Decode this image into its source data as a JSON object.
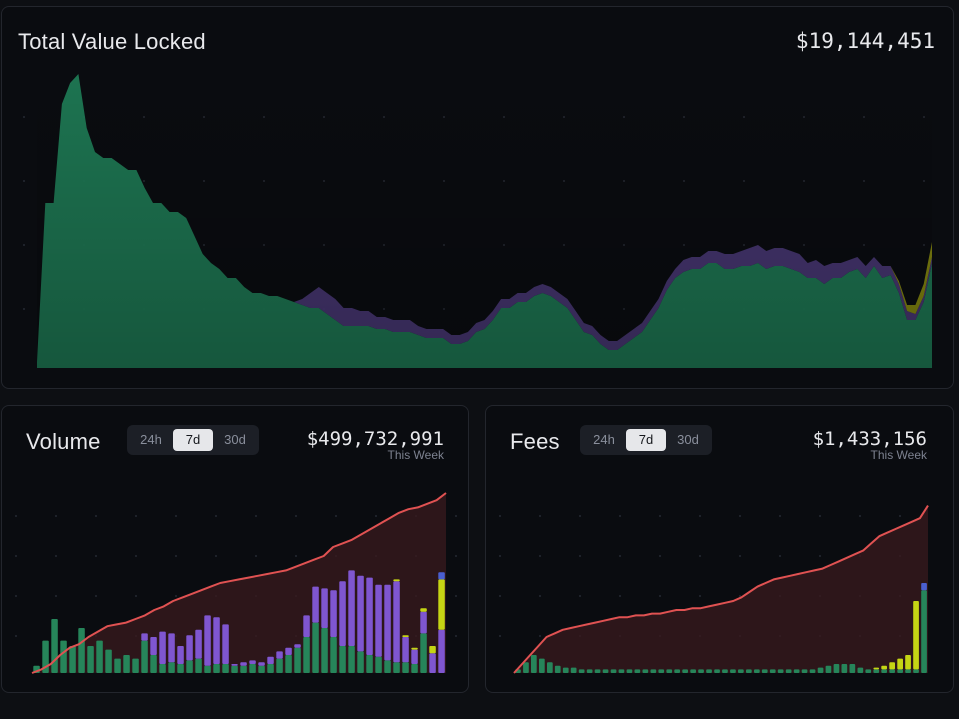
{
  "tvl": {
    "title": "Total Value Locked",
    "value": "$19,144,451",
    "colors": {
      "green": "#1f7a55",
      "purple": "#4b3a7a",
      "yellow": "#8c8f10"
    }
  },
  "volume": {
    "title": "Volume",
    "value": "$499,732,991",
    "period_label": "This Week",
    "tabs": [
      {
        "label": "24h",
        "active": false
      },
      {
        "label": "7d",
        "active": true
      },
      {
        "label": "30d",
        "active": false
      }
    ]
  },
  "fees": {
    "title": "Fees",
    "value": "$1,433,156",
    "period_label": "This Week",
    "tabs": [
      {
        "label": "24h",
        "active": false
      },
      {
        "label": "7d",
        "active": true
      },
      {
        "label": "30d",
        "active": false
      }
    ]
  },
  "chart_data": [
    {
      "type": "area",
      "stacked": true,
      "grid": "dots",
      "series_colors": [
        "#1f7a55",
        "#4b3a7a",
        "#8c8f10"
      ],
      "series": [
        {
          "values": [
            0.02,
            0.55,
            0.55,
            0.88,
            0.95,
            0.98,
            0.8,
            0.72,
            0.7,
            0.7,
            0.68,
            0.66,
            0.66,
            0.6,
            0.55,
            0.55,
            0.52,
            0.52,
            0.5,
            0.44,
            0.38,
            0.35,
            0.33,
            0.3,
            0.3,
            0.27,
            0.25,
            0.25,
            0.24,
            0.24,
            0.23,
            0.22,
            0.21,
            0.2,
            0.2,
            0.18,
            0.16,
            0.14,
            0.14,
            0.14,
            0.14,
            0.13,
            0.13,
            0.12,
            0.12,
            0.12,
            0.11,
            0.1,
            0.1,
            0.1,
            0.08,
            0.08,
            0.09,
            0.12,
            0.13,
            0.16,
            0.2,
            0.2,
            0.22,
            0.22,
            0.24,
            0.25,
            0.24,
            0.22,
            0.2,
            0.16,
            0.12,
            0.11,
            0.08,
            0.06,
            0.06,
            0.08,
            0.1,
            0.12,
            0.16,
            0.2,
            0.26,
            0.3,
            0.32,
            0.33,
            0.33,
            0.35,
            0.35,
            0.33,
            0.33,
            0.34,
            0.34,
            0.35,
            0.33,
            0.34,
            0.34,
            0.33,
            0.32,
            0.3,
            0.3,
            0.28,
            0.3,
            0.3,
            0.32,
            0.33,
            0.3,
            0.34,
            0.3,
            0.31,
            0.25,
            0.16,
            0.16,
            0.22,
            0.35
          ]
        },
        {
          "values": [
            0,
            0,
            0,
            0,
            0,
            0,
            0,
            0,
            0,
            0,
            0,
            0,
            0,
            0,
            0,
            0,
            0,
            0,
            0,
            0,
            0,
            0,
            0,
            0,
            0,
            0,
            0,
            0,
            0,
            0,
            0,
            0,
            0.02,
            0.05,
            0.07,
            0.07,
            0.07,
            0.06,
            0.06,
            0.05,
            0.05,
            0.04,
            0.04,
            0.04,
            0.04,
            0.04,
            0.03,
            0.03,
            0.03,
            0.03,
            0.03,
            0.03,
            0.03,
            0.03,
            0.03,
            0.03,
            0.03,
            0.03,
            0.03,
            0.03,
            0.03,
            0.03,
            0.03,
            0.03,
            0.03,
            0.03,
            0.03,
            0.03,
            0.03,
            0.03,
            0.03,
            0.03,
            0.03,
            0.03,
            0.03,
            0.03,
            0.03,
            0.03,
            0.04,
            0.04,
            0.04,
            0.04,
            0.04,
            0.05,
            0.05,
            0.05,
            0.06,
            0.06,
            0.06,
            0.06,
            0.06,
            0.06,
            0.06,
            0.05,
            0.06,
            0.06,
            0.05,
            0.05,
            0.04,
            0.04,
            0.04,
            0.03,
            0.04,
            0.03,
            0.03,
            0.03,
            0.02,
            0.02,
            0.02,
            0.08
          ]
        },
        {
          "values": [
            0,
            0,
            0,
            0,
            0,
            0,
            0,
            0,
            0,
            0,
            0,
            0,
            0,
            0,
            0,
            0,
            0,
            0,
            0,
            0,
            0,
            0,
            0,
            0,
            0,
            0,
            0,
            0,
            0,
            0,
            0,
            0,
            0,
            0,
            0,
            0,
            0,
            0,
            0,
            0,
            0,
            0,
            0,
            0,
            0,
            0,
            0,
            0,
            0,
            0,
            0,
            0,
            0,
            0,
            0,
            0,
            0,
            0,
            0,
            0,
            0,
            0,
            0,
            0,
            0,
            0,
            0,
            0,
            0,
            0,
            0,
            0,
            0,
            0,
            0,
            0,
            0,
            0,
            0,
            0,
            0,
            0,
            0,
            0,
            0,
            0,
            0,
            0,
            0,
            0,
            0,
            0,
            0,
            0,
            0,
            0,
            0,
            0,
            0,
            0,
            0,
            0,
            0,
            0,
            0.01,
            0.02,
            0.03,
            0.04,
            0.05,
            0.04,
            0.1,
            0.12,
            0.4
          ]
        }
      ]
    },
    {
      "type": "bar",
      "stacked": true,
      "grid": "dots",
      "series_colors": [
        "#26855a",
        "#7f56d0",
        "#c5d514",
        "#4a5fd0"
      ],
      "cumulative_line_color": "#e05252",
      "series": [
        {
          "values": [
            0.04,
            0.18,
            0.3,
            0.18,
            0.15,
            0.25,
            0.15,
            0.18,
            0.13,
            0.08,
            0.1,
            0.08,
            0.18,
            0.1,
            0.05,
            0.06,
            0.05,
            0.07,
            0.08,
            0.04,
            0.05,
            0.05,
            0.04,
            0.04,
            0.05,
            0.04,
            0.05,
            0.08,
            0.1,
            0.14,
            0.2,
            0.28,
            0.25,
            0.2,
            0.15,
            0.15,
            0.12,
            0.1,
            0.09,
            0.07,
            0.06,
            0.06,
            0.05,
            0.22
          ]
        },
        {
          "values": [
            0,
            0,
            0,
            0,
            0,
            0,
            0,
            0,
            0,
            0,
            0,
            0,
            0.04,
            0.1,
            0.18,
            0.16,
            0.1,
            0.14,
            0.16,
            0.28,
            0.26,
            0.22,
            0.01,
            0.02,
            0.02,
            0.02,
            0.04,
            0.04,
            0.04,
            0.02,
            0.12,
            0.2,
            0.22,
            0.26,
            0.36,
            0.42,
            0.42,
            0.43,
            0.4,
            0.42,
            0.45,
            0.14,
            0.08,
            0.12,
            0.11,
            0.24
          ]
        },
        {
          "values": [
            0,
            0,
            0,
            0,
            0,
            0,
            0,
            0,
            0,
            0,
            0,
            0,
            0,
            0,
            0,
            0,
            0,
            0,
            0,
            0,
            0,
            0,
            0,
            0,
            0,
            0,
            0,
            0,
            0,
            0,
            0,
            0,
            0,
            0,
            0,
            0,
            0,
            0,
            0,
            0,
            0.01,
            0.01,
            0.01,
            0.02,
            0.04,
            0.28
          ]
        },
        {
          "values": [
            0,
            0,
            0,
            0,
            0,
            0,
            0,
            0,
            0,
            0,
            0,
            0,
            0,
            0,
            0,
            0,
            0,
            0,
            0,
            0,
            0,
            0,
            0,
            0,
            0,
            0,
            0,
            0,
            0,
            0,
            0,
            0,
            0,
            0,
            0,
            0,
            0,
            0,
            0,
            0,
            0,
            0,
            0,
            0,
            0,
            0.04
          ]
        },
        {
          "cumulative": [
            0.0,
            0.02,
            0.05,
            0.1,
            0.14,
            0.16,
            0.2,
            0.23,
            0.26,
            0.27,
            0.28,
            0.3,
            0.32,
            0.35,
            0.37,
            0.4,
            0.42,
            0.44,
            0.46,
            0.48,
            0.5,
            0.51,
            0.52,
            0.53,
            0.54,
            0.55,
            0.56,
            0.57,
            0.59,
            0.61,
            0.63,
            0.65,
            0.7,
            0.72,
            0.74,
            0.77,
            0.8,
            0.83,
            0.86,
            0.89,
            0.91,
            0.92,
            0.94,
            0.96,
            1.0
          ]
        }
      ]
    },
    {
      "type": "bar",
      "stacked": true,
      "grid": "dots",
      "series_colors": [
        "#26855a",
        "#c5d514",
        "#4a5fd0"
      ],
      "cumulative_line_color": "#e05252",
      "series": [
        {
          "values": [
            0.02,
            0.06,
            0.1,
            0.08,
            0.06,
            0.04,
            0.03,
            0.03,
            0.02,
            0.02,
            0.02,
            0.02,
            0.02,
            0.02,
            0.02,
            0.02,
            0.02,
            0.02,
            0.02,
            0.02,
            0.02,
            0.02,
            0.02,
            0.02,
            0.02,
            0.02,
            0.02,
            0.02,
            0.02,
            0.02,
            0.02,
            0.02,
            0.02,
            0.02,
            0.02,
            0.02,
            0.02,
            0.02,
            0.03,
            0.04,
            0.05,
            0.05,
            0.05,
            0.03,
            0.02,
            0.02,
            0.02,
            0.02,
            0.02,
            0.02,
            0.02,
            0.46
          ]
        },
        {
          "values": [
            0,
            0,
            0,
            0,
            0,
            0,
            0,
            0,
            0,
            0,
            0,
            0,
            0,
            0,
            0,
            0,
            0,
            0,
            0,
            0,
            0,
            0,
            0,
            0,
            0,
            0,
            0,
            0,
            0,
            0,
            0,
            0,
            0,
            0,
            0,
            0,
            0,
            0,
            0,
            0,
            0,
            0,
            0,
            0,
            0,
            0.01,
            0.02,
            0.04,
            0.06,
            0.08,
            0.38
          ]
        },
        {
          "values": [
            0,
            0,
            0,
            0,
            0,
            0,
            0,
            0,
            0,
            0,
            0,
            0,
            0,
            0,
            0,
            0,
            0,
            0,
            0,
            0,
            0,
            0,
            0,
            0,
            0,
            0,
            0,
            0,
            0,
            0,
            0,
            0,
            0,
            0,
            0,
            0,
            0,
            0,
            0,
            0,
            0,
            0,
            0,
            0,
            0,
            0,
            0,
            0,
            0,
            0,
            0,
            0.04
          ]
        },
        {
          "cumulative": [
            0.0,
            0.05,
            0.1,
            0.15,
            0.2,
            0.22,
            0.24,
            0.25,
            0.26,
            0.27,
            0.28,
            0.29,
            0.3,
            0.31,
            0.31,
            0.32,
            0.32,
            0.33,
            0.33,
            0.34,
            0.35,
            0.35,
            0.36,
            0.36,
            0.37,
            0.38,
            0.39,
            0.4,
            0.42,
            0.45,
            0.48,
            0.5,
            0.52,
            0.53,
            0.54,
            0.55,
            0.56,
            0.57,
            0.58,
            0.6,
            0.62,
            0.64,
            0.66,
            0.68,
            0.72,
            0.76,
            0.78,
            0.8,
            0.82,
            0.84,
            0.86,
            0.93
          ]
        }
      ]
    }
  ]
}
